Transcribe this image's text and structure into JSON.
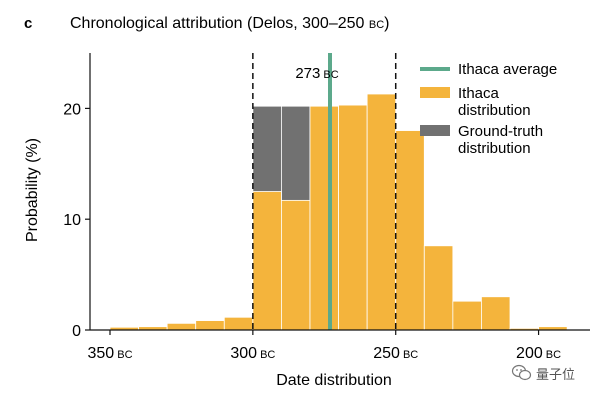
{
  "panel_label": "c",
  "colors": {
    "ithaca_distribution": "#F4B43C",
    "ground_truth": "#717171",
    "ithaca_average": "#5CA98B",
    "axis": "#111111",
    "bar_edge": "#ffffff"
  },
  "chart_data": {
    "type": "bar",
    "title": "Chronological attribution (Delos, 300–250 ",
    "title_era": "BC",
    "title_end": ")",
    "xlabel": "Date distribution",
    "ylabel": "Probability (%)",
    "x_unit": "BC",
    "xlim": [
      357,
      182
    ],
    "ylim": [
      0,
      25
    ],
    "x_ticks": [
      {
        "value": 350,
        "label": "350",
        "era": "BC"
      },
      {
        "value": 300,
        "label": "300",
        "era": "BC"
      },
      {
        "value": 250,
        "label": "250",
        "era": "BC"
      },
      {
        "value": 200,
        "label": "200",
        "era": "BC"
      }
    ],
    "y_ticks": [
      {
        "value": 0,
        "label": "0"
      },
      {
        "value": 10,
        "label": "10"
      },
      {
        "value": 20,
        "label": "20"
      }
    ],
    "bin_width": 10,
    "series": [
      {
        "name": "Ground-truth distribution",
        "bins": [
          {
            "start": 300,
            "value": 20.2
          },
          {
            "start": 290,
            "value": 20.2
          },
          {
            "start": 280,
            "value": 20.2
          },
          {
            "start": 270,
            "value": 20.2
          },
          {
            "start": 260,
            "value": 20.2
          }
        ]
      },
      {
        "name": "Ithaca distribution",
        "bins": [
          {
            "start": 350,
            "value": 0.25
          },
          {
            "start": 340,
            "value": 0.3
          },
          {
            "start": 330,
            "value": 0.6
          },
          {
            "start": 320,
            "value": 0.85
          },
          {
            "start": 310,
            "value": 1.15
          },
          {
            "start": 300,
            "value": 12.5
          },
          {
            "start": 290,
            "value": 11.7
          },
          {
            "start": 280,
            "value": 20.2
          },
          {
            "start": 270,
            "value": 20.3
          },
          {
            "start": 260,
            "value": 21.3
          },
          {
            "start": 250,
            "value": 18.0
          },
          {
            "start": 240,
            "value": 7.6
          },
          {
            "start": 230,
            "value": 2.6
          },
          {
            "start": 220,
            "value": 3.0
          },
          {
            "start": 210,
            "value": 0.15
          },
          {
            "start": 200,
            "value": 0.3
          }
        ]
      }
    ],
    "ithaca_average": 273,
    "ithaca_average_label": "273",
    "ithaca_average_era": "BC",
    "ground_truth_range": [
      300,
      250
    ],
    "legend_position": "top-right",
    "legend": [
      {
        "key": "avg",
        "lines": [
          "Ithaca average"
        ]
      },
      {
        "key": "dist",
        "lines": [
          "Ithaca",
          "distribution"
        ]
      },
      {
        "key": "gt",
        "lines": [
          "Ground-truth",
          "distribution"
        ]
      }
    ]
  },
  "watermark": {
    "icon": "wechat-icon",
    "text": "量子位"
  }
}
